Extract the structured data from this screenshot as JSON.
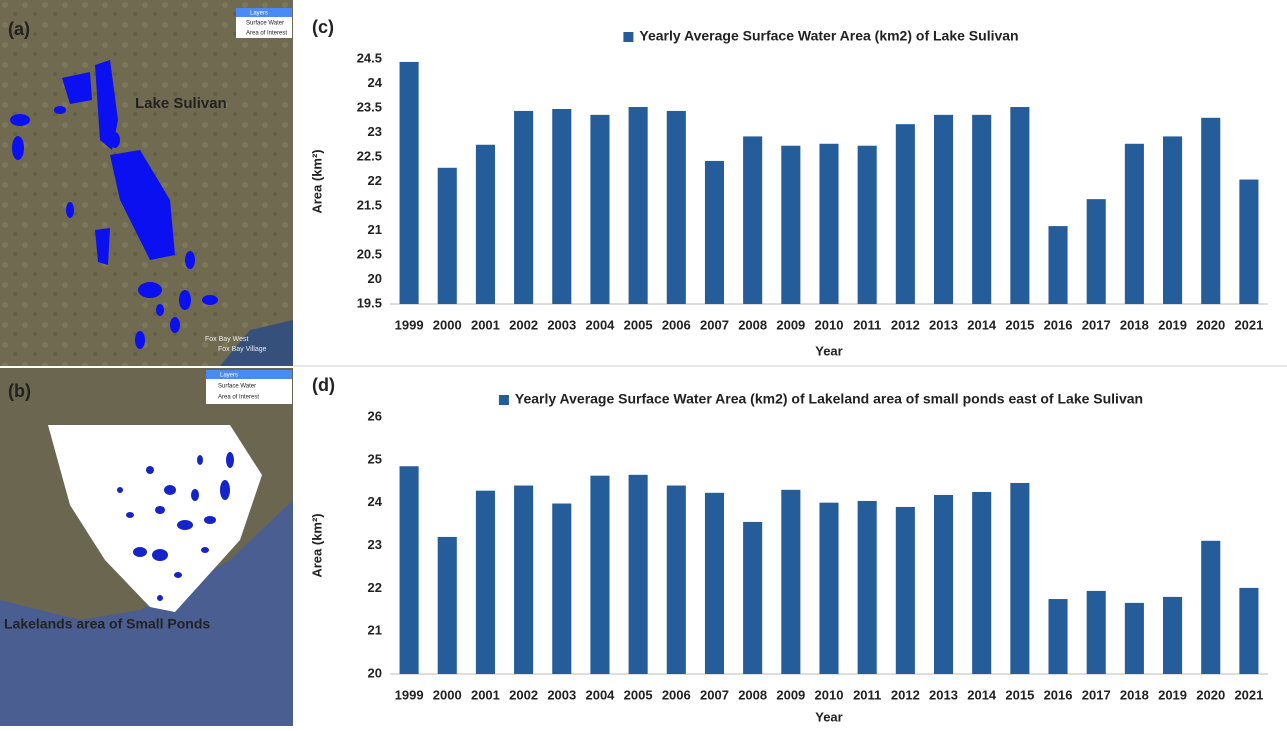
{
  "maps": [
    {
      "panel_label": "(a)",
      "title": "Lake Sulivan",
      "layers": {
        "heading": "Layers",
        "items": [
          "Surface Water",
          "Area of Interest"
        ]
      },
      "places": [
        "Fox Bay West",
        "Fox Bay Village"
      ]
    },
    {
      "panel_label": "(b)",
      "title": "Lakelands area of Small Ponds",
      "layers": {
        "heading": "Layers",
        "items": [
          "Surface Water",
          "Area of Interest"
        ]
      }
    }
  ],
  "chart_data": [
    {
      "type": "bar",
      "panel_label": "(c)",
      "x_label": "Year",
      "y_label": "Area (km²)",
      "categories": [
        "1999",
        "2000",
        "2001",
        "2002",
        "2003",
        "2004",
        "2005",
        "2006",
        "2007",
        "2008",
        "2009",
        "2010",
        "2011",
        "2012",
        "2013",
        "2014",
        "2015",
        "2016",
        "2017",
        "2018",
        "2019",
        "2020",
        "2021"
      ],
      "series": [
        {
          "name": "Yearly Average Surface Water Area (km2) of Lake Sulivan",
          "color": "#245d9a",
          "values": [
            24.44,
            22.28,
            22.75,
            23.44,
            23.48,
            23.36,
            23.52,
            23.44,
            22.42,
            22.92,
            22.73,
            22.77,
            22.73,
            23.17,
            23.36,
            23.36,
            23.52,
            21.09,
            21.64,
            22.77,
            22.92,
            23.3,
            22.04
          ]
        }
      ],
      "ylim": [
        19.5,
        24.5
      ],
      "yticks": [
        19.5,
        20,
        20.5,
        21,
        21.5,
        22,
        22.5,
        23,
        23.5,
        24,
        24.5
      ],
      "grid": false,
      "legend": "top"
    },
    {
      "type": "bar",
      "panel_label": "(d)",
      "x_label": "Year",
      "y_label": "Area (km²)",
      "categories": [
        "1999",
        "2000",
        "2001",
        "2002",
        "2003",
        "2004",
        "2005",
        "2006",
        "2007",
        "2008",
        "2009",
        "2010",
        "2011",
        "2012",
        "2013",
        "2014",
        "2015",
        "2016",
        "2017",
        "2018",
        "2019",
        "2020",
        "2021"
      ],
      "series": [
        {
          "name": "Yearly Average Surface Water Area (km2) of Lakeland area of small ponds east of Lake Sulivan",
          "color": "#245d9a",
          "values": [
            24.85,
            23.2,
            24.28,
            24.4,
            23.98,
            24.63,
            24.65,
            24.4,
            24.23,
            23.55,
            24.3,
            24.0,
            24.04,
            23.9,
            24.18,
            24.25,
            24.46,
            21.75,
            21.94,
            21.66,
            21.8,
            23.11,
            22.01
          ]
        }
      ],
      "ylim": [
        20,
        26
      ],
      "yticks": [
        20,
        21,
        22,
        23,
        24,
        25,
        26
      ],
      "grid": false,
      "legend": "top"
    }
  ]
}
